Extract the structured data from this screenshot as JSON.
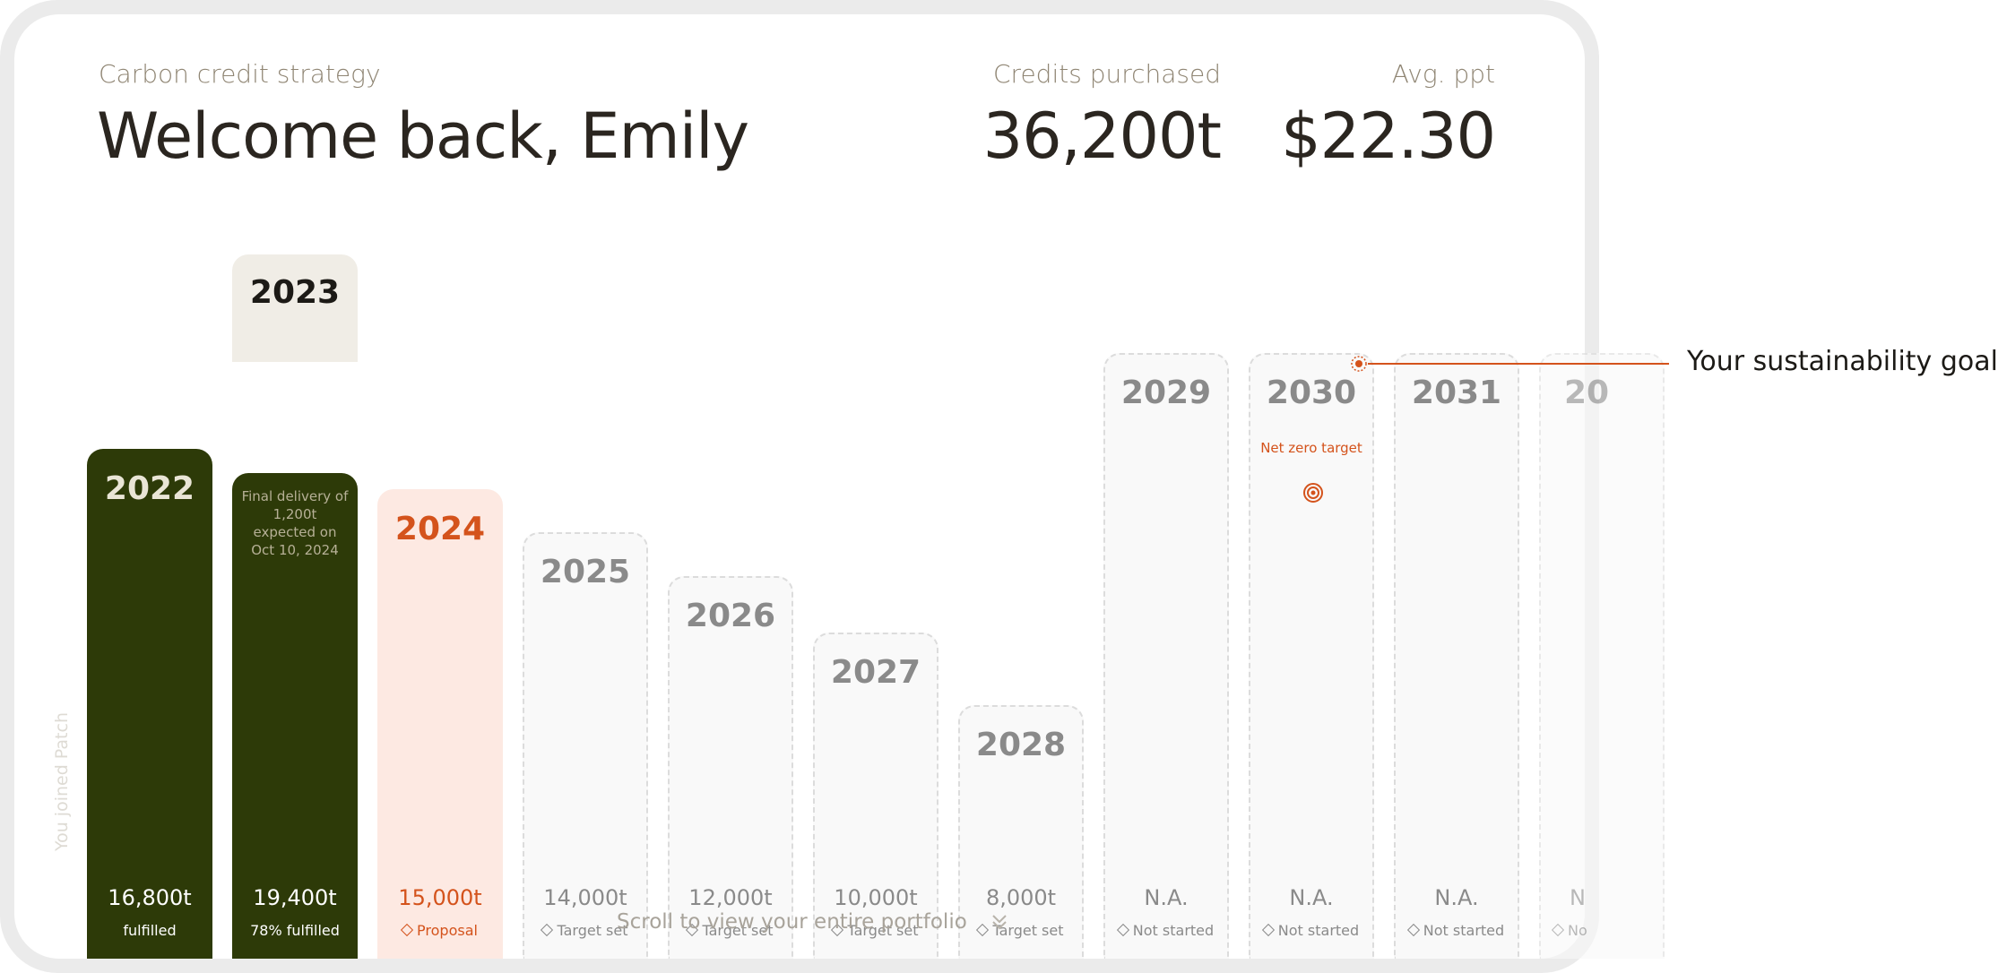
{
  "header": {
    "subtitle": "Carbon credit strategy",
    "title": "Welcome back, Emily"
  },
  "stats": [
    {
      "label": "Credits purchased",
      "value": "36,200t"
    },
    {
      "label": "Avg. ppt",
      "value": "$22.30"
    }
  ],
  "joined_label": "You joined Patch",
  "years": [
    {
      "year": "2022",
      "amount": "16,800t",
      "status": "fulfilled",
      "state": "fulfilled"
    },
    {
      "year": "2023",
      "amount": "19,400t",
      "status": "78% fulfilled",
      "state": "in-progress",
      "note": "Final delivery of 1,200t expected on Oct 10, 2024"
    },
    {
      "year": "2024",
      "amount": "15,000t",
      "status": "Proposal",
      "state": "proposal"
    },
    {
      "year": "2025",
      "amount": "14,000t",
      "status": "Target set",
      "state": "target"
    },
    {
      "year": "2026",
      "amount": "12,000t",
      "status": "Target set",
      "state": "target"
    },
    {
      "year": "2027",
      "amount": "10,000t",
      "status": "Target set",
      "state": "target"
    },
    {
      "year": "2028",
      "amount": "8,000t",
      "status": "Target set",
      "state": "target"
    },
    {
      "year": "2029",
      "amount": "N.A.",
      "status": "Not started",
      "state": "not-started"
    },
    {
      "year": "2030",
      "amount": "N.A.",
      "status": "Not started",
      "state": "not-started",
      "marker": "Net zero target"
    },
    {
      "year": "2031",
      "amount": "N.A.",
      "status": "Not started",
      "state": "not-started"
    },
    {
      "year": "20",
      "amount": "N",
      "status": "No",
      "state": "not-started"
    }
  ],
  "goal_label": "Your sustainability goal",
  "scroll_hint": "Scroll to view your entire portfolio",
  "colors": {
    "fulfilled": "#2d3a08",
    "accent": "#d4531c",
    "proposal_bg": "#fde9e2"
  },
  "icons": {
    "target": "target-icon",
    "goal_marker": "sun-icon",
    "status": "diamond-icon",
    "scroll": "double-chevron-down-icon"
  }
}
